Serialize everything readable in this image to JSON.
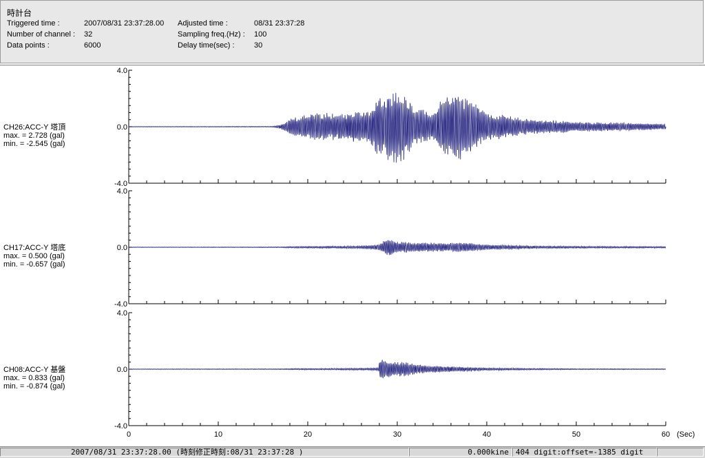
{
  "header": {
    "title": "時計台",
    "triggered_label": "Triggered time :",
    "triggered_value": "2007/08/31 23:37:28.00",
    "adjusted_label": "Adjusted time :",
    "adjusted_value": "08/31 23:37:28",
    "channels_label": "Number of channel :",
    "channels_value": "32",
    "sampling_label": "Sampling freq.(Hz) :",
    "sampling_value": "100",
    "points_label": "Data points :",
    "points_value": "6000",
    "delay_label": "Delay time(sec) :",
    "delay_value": "30"
  },
  "status": {
    "time": "2007/08/31 23:37:28.00  (時刻修正時刻:08/31 23:37:28  )",
    "kine": "0.000kine",
    "digit": "404 digit:offset=-1385 digit"
  },
  "chart_data": {
    "type": "line",
    "xlabel": "(Sec)",
    "xlim": [
      0,
      60
    ],
    "x_ticks": [
      "0",
      "10",
      "20",
      "30",
      "40",
      "50",
      "60"
    ],
    "panels": [
      {
        "name": "CH26:ACC-Y 塔頂",
        "max_text": "max. = 2.728 (gal)",
        "min_text": "min. = -2.545 (gal)",
        "max": 2.728,
        "min": -2.545,
        "ylim": [
          -4.0,
          4.0
        ],
        "y_ticks": [
          "4.0",
          "0.0",
          "-4.0"
        ],
        "envelope": [
          [
            0,
            0.02
          ],
          [
            16,
            0.03
          ],
          [
            17,
            0.15
          ],
          [
            18,
            0.6
          ],
          [
            20,
            0.9
          ],
          [
            22,
            1.0
          ],
          [
            24,
            0.9
          ],
          [
            25,
            1.2
          ],
          [
            26,
            1.0
          ],
          [
            27,
            1.3
          ],
          [
            28,
            2.3
          ],
          [
            29,
            2.5
          ],
          [
            30,
            2.728
          ],
          [
            31,
            2.2
          ],
          [
            32,
            1.3
          ],
          [
            33,
            1.2
          ],
          [
            34,
            1.0
          ],
          [
            35,
            2.0
          ],
          [
            36,
            2.4
          ],
          [
            37,
            2.4
          ],
          [
            38,
            2.0
          ],
          [
            39,
            1.5
          ],
          [
            40,
            1.0
          ],
          [
            42,
            0.9
          ],
          [
            44,
            0.6
          ],
          [
            46,
            0.5
          ],
          [
            48,
            0.45
          ],
          [
            50,
            0.35
          ],
          [
            55,
            0.3
          ],
          [
            60,
            0.2
          ]
        ],
        "color": "#1a1a7a"
      },
      {
        "name": "CH17:ACC-Y 塔底",
        "max_text": "max. = 0.500 (gal)",
        "min_text": "min. = -0.657 (gal)",
        "max": 0.5,
        "min": -0.657,
        "ylim": [
          -4.0,
          4.0
        ],
        "y_ticks": [
          "4.0",
          "0.0",
          "-4.0"
        ],
        "envelope": [
          [
            0,
            0.02
          ],
          [
            17,
            0.03
          ],
          [
            18,
            0.06
          ],
          [
            22,
            0.08
          ],
          [
            26,
            0.1
          ],
          [
            28,
            0.2
          ],
          [
            28.5,
            0.5
          ],
          [
            29,
            0.657
          ],
          [
            30,
            0.4
          ],
          [
            31,
            0.4
          ],
          [
            32,
            0.35
          ],
          [
            35,
            0.3
          ],
          [
            37,
            0.35
          ],
          [
            40,
            0.2
          ],
          [
            45,
            0.1
          ],
          [
            50,
            0.08
          ],
          [
            60,
            0.06
          ]
        ],
        "color": "#1a1a7a"
      },
      {
        "name": "CH08:ACC-Y 基盤",
        "max_text": "max. = 0.833 (gal)",
        "min_text": "min. = -0.874 (gal)",
        "max": 0.833,
        "min": -0.874,
        "ylim": [
          -4.0,
          4.0
        ],
        "y_ticks": [
          "4.0",
          "0.0",
          "-4.0"
        ],
        "envelope": [
          [
            0,
            0.02
          ],
          [
            17,
            0.03
          ],
          [
            18,
            0.05
          ],
          [
            22,
            0.06
          ],
          [
            26,
            0.08
          ],
          [
            27.9,
            0.1
          ],
          [
            28.1,
            0.874
          ],
          [
            28.5,
            0.7
          ],
          [
            29,
            0.6
          ],
          [
            30,
            0.5
          ],
          [
            31,
            0.55
          ],
          [
            32,
            0.35
          ],
          [
            34,
            0.25
          ],
          [
            36,
            0.2
          ],
          [
            38,
            0.15
          ],
          [
            40,
            0.1
          ],
          [
            45,
            0.06
          ],
          [
            50,
            0.04
          ],
          [
            60,
            0.03
          ]
        ],
        "color": "#1a1a7a"
      }
    ]
  }
}
